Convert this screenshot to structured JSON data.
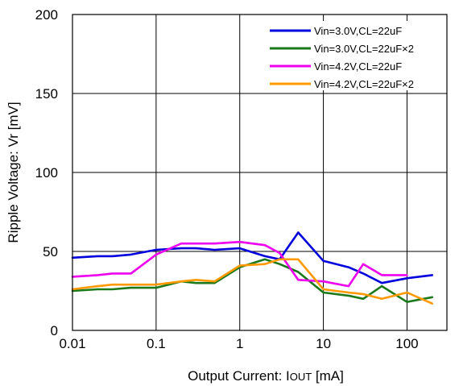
{
  "chart_data": {
    "type": "line",
    "xscale": "log",
    "xlim": [
      0.01,
      300
    ],
    "ylim": [
      0,
      200
    ],
    "grid": true,
    "legend_position": "top-right",
    "xlabel": "Output Current: IOUT [mA]",
    "xlabel_main": "Output Current: I",
    "xlabel_sub": "OUT",
    "xlabel_unit": " [mA]",
    "ylabel": "Ripple Voltage: Vr [mV]",
    "x_ticks": [
      0.01,
      0.1,
      1,
      10,
      100
    ],
    "x_tick_labels": [
      "0.01",
      "0.1",
      "1",
      "10",
      "100"
    ],
    "y_ticks": [
      0,
      50,
      100,
      150,
      200
    ],
    "y_tick_labels": [
      "0",
      "50",
      "100",
      "150",
      "200"
    ],
    "series": [
      {
        "name": "Vin=3.0V,CL=22uF",
        "color": "#0000dd",
        "x": [
          0.01,
          0.02,
          0.03,
          0.05,
          0.1,
          0.2,
          0.3,
          0.5,
          1,
          2,
          3,
          5,
          10,
          20,
          30,
          50,
          100,
          200
        ],
        "y": [
          46,
          47,
          47,
          48,
          51,
          52,
          52,
          51,
          52,
          47,
          45,
          62,
          44,
          40,
          36,
          30,
          33,
          35
        ]
      },
      {
        "name": "Vin=3.0V,CL=22uF×2",
        "color": "#1a7a1a",
        "x": [
          0.01,
          0.02,
          0.03,
          0.05,
          0.1,
          0.2,
          0.3,
          0.5,
          1,
          2,
          3,
          5,
          10,
          20,
          30,
          50,
          100,
          200
        ],
        "y": [
          25,
          26,
          26,
          27,
          27,
          31,
          30,
          30,
          40,
          45,
          42,
          37,
          24,
          22,
          20,
          28,
          18,
          21
        ]
      },
      {
        "name": "Vin=4.2V,CL=22uF",
        "color": "#ee00ee",
        "x": [
          0.01,
          0.02,
          0.03,
          0.05,
          0.1,
          0.2,
          0.3,
          0.5,
          1,
          2,
          3,
          5,
          10,
          20,
          30,
          50,
          100
        ],
        "y": [
          34,
          35,
          36,
          36,
          48,
          55,
          55,
          55,
          56,
          54,
          49,
          32,
          31,
          28,
          42,
          35,
          35
        ]
      },
      {
        "name": "Vin=4.2V,CL=22uF×2",
        "color": "#ff9900",
        "x": [
          0.01,
          0.02,
          0.03,
          0.05,
          0.1,
          0.2,
          0.3,
          0.5,
          1,
          2,
          3,
          5,
          10,
          20,
          30,
          50,
          100,
          200
        ],
        "y": [
          26,
          28,
          29,
          29,
          29,
          31,
          32,
          31,
          41,
          42,
          45,
          45,
          26,
          24,
          23,
          20,
          24,
          17
        ]
      }
    ]
  }
}
